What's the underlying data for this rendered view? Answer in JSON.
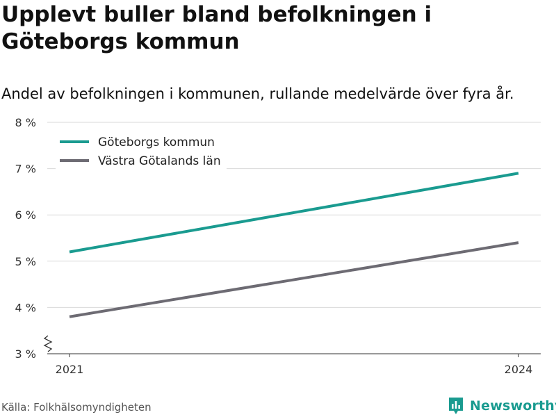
{
  "header": {
    "title": "Upplevt buller bland befolkningen i Göteborgs kommun",
    "subtitle": "Andel av befolkningen i kommunen, rullande medelvärde över fyra år."
  },
  "footer": {
    "source": "Källa: Folkhälsomyndigheten",
    "brand": "Newsworthy",
    "brand_icon": "bar-chart-pin-icon"
  },
  "colors": {
    "goteborg": "#1a9b90",
    "vastra": "#6d6b73",
    "grid": "#d9d9d9",
    "axis": "#333333",
    "brand": "#1a9b90"
  },
  "chart_data": {
    "type": "line",
    "title": "",
    "xlabel": "",
    "ylabel": "",
    "x": [
      2021,
      2024
    ],
    "x_tick_labels": [
      "2021",
      "2024"
    ],
    "ylim": [
      3,
      8
    ],
    "y_ticks": [
      3,
      4,
      5,
      6,
      7,
      8
    ],
    "y_tick_labels": [
      "3 %",
      "4 %",
      "5 %",
      "6 %",
      "7 %",
      "8 %"
    ],
    "y_axis_break": true,
    "grid": "horizontal",
    "legend_position": "top-left",
    "series": [
      {
        "name": "Göteborgs kommun",
        "values": [
          5.2,
          6.9
        ],
        "color": "#1a9b90"
      },
      {
        "name": "Västra Götalands län",
        "values": [
          3.8,
          5.4
        ],
        "color": "#6d6b73"
      }
    ]
  }
}
